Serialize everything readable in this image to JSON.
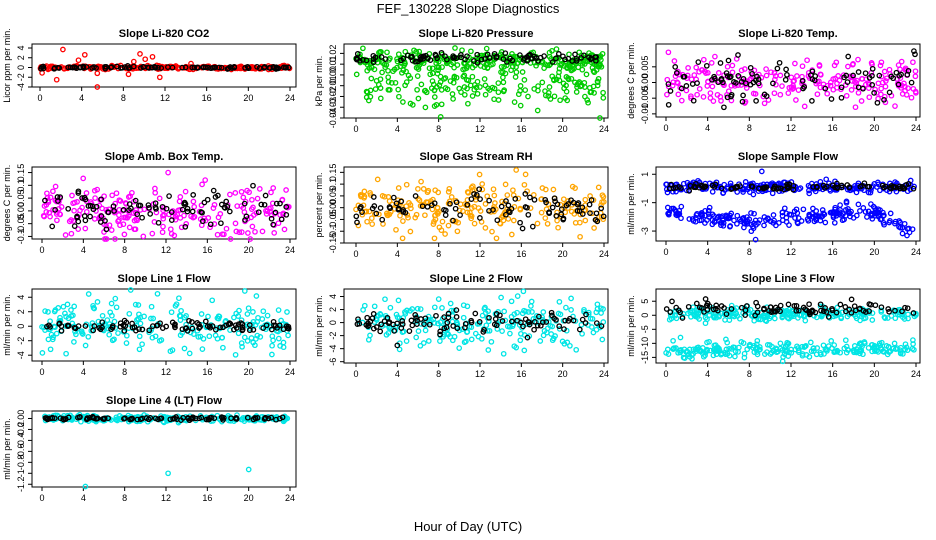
{
  "figure": {
    "title": "FEF_130228  Slope Diagnostics",
    "xlabel": "Hour of Day (UTC)"
  },
  "chart_data": [
    {
      "type": "scatter",
      "title": "Slope Li-820 CO2",
      "ylabel": "Licor ppm per min.",
      "xlim": [
        0,
        24
      ],
      "xticks": [
        0,
        4,
        8,
        12,
        16,
        20,
        24
      ],
      "yticks": [
        -4,
        -2,
        0,
        2,
        4
      ],
      "ylim": [
        -4,
        4
      ],
      "color": "#ff0000",
      "series": [
        {
          "name": "colored",
          "center": 0.0,
          "spread": 0.18,
          "outliers": [
            [
              2.2,
              3.7
            ],
            [
              3.7,
              1.5
            ],
            [
              4.3,
              2.6
            ],
            [
              5.5,
              -1.2
            ],
            [
              8.5,
              -1.4
            ],
            [
              9.6,
              2.8
            ],
            [
              10.1,
              1.7
            ],
            [
              10.8,
              2.2
            ],
            [
              11.5,
              -2.0
            ],
            [
              5.5,
              -4.1
            ],
            [
              1.6,
              -2.5
            ],
            [
              0.2,
              -1.1
            ],
            [
              14.5,
              0.8
            ],
            [
              9.0,
              1.2
            ]
          ]
        },
        {
          "name": "black",
          "center": 0.0,
          "spread": 0.12
        }
      ]
    },
    {
      "type": "scatter",
      "title": "Slope Li-820 Pressure",
      "ylabel": "kPa per min.",
      "xlim": [
        0,
        24
      ],
      "xticks": [
        0,
        4,
        8,
        12,
        16,
        20,
        24
      ],
      "yticks": [
        -0.04,
        -0.03,
        -0.02,
        -0.01,
        0.0,
        0.01,
        0.02
      ],
      "ylim": [
        -0.04,
        0.025
      ],
      "color": "#00cc00",
      "series": [
        {
          "name": "colored-upper",
          "center": 0.013,
          "spread": 0.004
        },
        {
          "name": "colored-lower",
          "center": -0.005,
          "spread": 0.012,
          "outliers": [
            [
              8.2,
              -0.039
            ],
            [
              23.6,
              -0.04
            ],
            [
              19.4,
              0.024
            ],
            [
              21.6,
              0.021
            ],
            [
              3.0,
              0.021
            ]
          ]
        },
        {
          "name": "black",
          "center": 0.016,
          "spread": 0.002
        }
      ]
    },
    {
      "type": "scatter",
      "title": "Slope Li-820 Temp.",
      "ylabel": "degrees C per min.",
      "xlim": [
        0,
        24
      ],
      "xticks": [
        0,
        4,
        8,
        12,
        16,
        20,
        24
      ],
      "yticks": [
        -0.01,
        -0.005,
        0.0,
        0.005
      ],
      "ylim": [
        -0.011,
        0.011
      ],
      "color": "#ff00ff",
      "series": [
        {
          "name": "colored",
          "center": 0.0005,
          "spread": 0.004
        },
        {
          "name": "black",
          "center": 0.0,
          "spread": 0.003,
          "outliers": [
            [
              23.9,
              0.009
            ],
            [
              23.8,
              0.01
            ],
            [
              6.0,
              0.007
            ],
            [
              3.1,
              0.0065
            ]
          ]
        }
      ]
    },
    {
      "type": "scatter",
      "title": "Slope Amb. Box Temp.",
      "ylabel": "degrees C per min.",
      "xlim": [
        0,
        24
      ],
      "xticks": [
        0,
        4,
        8,
        12,
        16,
        20,
        24
      ],
      "yticks": [
        -0.1,
        -0.05,
        0.0,
        0.05,
        0.1,
        0.15
      ],
      "ylim": [
        -0.11,
        0.16
      ],
      "color": "#ff00ff",
      "series": [
        {
          "name": "colored",
          "center": 0.0,
          "spread": 0.05,
          "outliers": [
            [
              12.2,
              0.15
            ],
            [
              9.8,
              -0.1
            ]
          ]
        },
        {
          "name": "black",
          "center": 0.0,
          "spread": 0.04
        }
      ]
    },
    {
      "type": "scatter",
      "title": "Slope Gas Stream RH",
      "ylabel": "percent per min.",
      "xlim": [
        0,
        24
      ],
      "xticks": [
        0,
        4,
        8,
        12,
        16,
        20,
        24
      ],
      "yticks": [
        -0.15,
        -0.1,
        -0.05,
        0.0,
        0.05,
        0.1,
        0.15
      ],
      "ylim": [
        -0.15,
        0.16
      ],
      "color": "#ffa500",
      "series": [
        {
          "name": "colored",
          "center": 0.0,
          "spread": 0.05,
          "outliers": [
            [
              15.5,
              0.16
            ],
            [
              13.6,
              -0.13
            ],
            [
              7.6,
              -0.13
            ],
            [
              2.1,
              0.12
            ]
          ]
        },
        {
          "name": "black",
          "center": 0.0,
          "spread": 0.035
        }
      ]
    },
    {
      "type": "scatter",
      "title": "Slope Sample Flow",
      "ylabel": "ml/min per min.",
      "xlim": [
        0,
        24
      ],
      "xticks": [
        0,
        4,
        8,
        12,
        16,
        20,
        24
      ],
      "yticks": [
        -3,
        -1,
        1
      ],
      "ylim": [
        -3.7,
        1.3
      ],
      "color": "#0000ff",
      "series": [
        {
          "name": "colored-upper",
          "center": 0.1,
          "spread": 0.2,
          "outliers": [
            [
              9.2,
              1.2
            ],
            [
              11.4,
              -1.4
            ]
          ]
        },
        {
          "name": "colored-lower",
          "center": -2.0,
          "spread": 0.3,
          "trend": [
            [
              0,
              -1.6
            ],
            [
              8,
              -2.4
            ],
            [
              12,
              -1.9
            ],
            [
              20,
              -1.7
            ],
            [
              23.7,
              -3.0
            ]
          ],
          "outliers": [
            [
              8.6,
              -3.6
            ]
          ]
        },
        {
          "name": "black",
          "center": 0.1,
          "spread": 0.12
        }
      ]
    },
    {
      "type": "scatter",
      "title": "Slope Line 1 Flow",
      "ylabel": "ml/min per min.",
      "xlim": [
        0,
        24
      ],
      "xticks": [
        0,
        4,
        8,
        12,
        16,
        20,
        24
      ],
      "yticks": [
        -4,
        -2,
        0,
        2,
        4
      ],
      "ylim": [
        -4.8,
        5.0
      ],
      "color": "#00e5e5",
      "series": [
        {
          "name": "colored",
          "center": 0.0,
          "spread": 1.8
        },
        {
          "name": "black",
          "center": 0.0,
          "spread": 0.35
        }
      ]
    },
    {
      "type": "scatter",
      "title": "Slope Line 2 Flow",
      "ylabel": "ml/min per min.",
      "xlim": [
        0,
        24
      ],
      "xticks": [
        0,
        4,
        8,
        12,
        16,
        20,
        24
      ],
      "yticks": [
        -6,
        -4,
        -2,
        0,
        2,
        4
      ],
      "ylim": [
        -6.2,
        5.0
      ],
      "color": "#00e5e5",
      "series": [
        {
          "name": "colored",
          "center": 0.0,
          "spread": 1.8,
          "outliers": [
            [
              16.2,
              4.8
            ],
            [
              12.8,
              -4.2
            ]
          ]
        },
        {
          "name": "black",
          "center": 0.0,
          "spread": 0.8,
          "outliers": [
            [
              4.0,
              -3.5
            ],
            [
              16.6,
              -2.3
            ]
          ]
        }
      ]
    },
    {
      "type": "scatter",
      "title": "Slope Line 3 Flow",
      "ylabel": "ml/min per min.",
      "xlim": [
        0,
        24
      ],
      "xticks": [
        0,
        4,
        8,
        12,
        16,
        20,
        24
      ],
      "yticks": [
        -15,
        -10,
        -5,
        0,
        5
      ],
      "ylim": [
        -17,
        9
      ],
      "color": "#00e5e5",
      "series": [
        {
          "name": "colored-upper",
          "center": 0.5,
          "spread": 1.2
        },
        {
          "name": "colored-lower",
          "center": -12.0,
          "spread": 1.4,
          "outliers": [
            [
              2.5,
              -15.5
            ],
            [
              11.2,
              -16.4
            ]
          ]
        },
        {
          "name": "black",
          "center": 2.0,
          "spread": 1.2,
          "outliers": [
            [
              3.8,
              5.8
            ],
            [
              4.0,
              4.2
            ]
          ]
        }
      ]
    },
    {
      "type": "scatter",
      "title": "Slope Line 4 (LT) Flow",
      "ylabel": "ml/min per min.",
      "xlim": [
        0,
        24
      ],
      "xticks": [
        0,
        4,
        8,
        12,
        16,
        20,
        24
      ],
      "yticks": [
        -1.2,
        -1.0,
        -0.8,
        -0.6,
        -0.4,
        -0.2,
        0.0
      ],
      "ylim": [
        -1.25,
        0.1
      ],
      "color": "#00e5e5",
      "series": [
        {
          "name": "colored",
          "center": 0.0,
          "spread": 0.03,
          "outliers": [
            [
              12.2,
              -1.0
            ],
            [
              20.0,
              -0.93
            ],
            [
              4.2,
              -1.24
            ]
          ]
        },
        {
          "name": "black",
          "center": 0.0,
          "spread": 0.015
        }
      ]
    }
  ]
}
